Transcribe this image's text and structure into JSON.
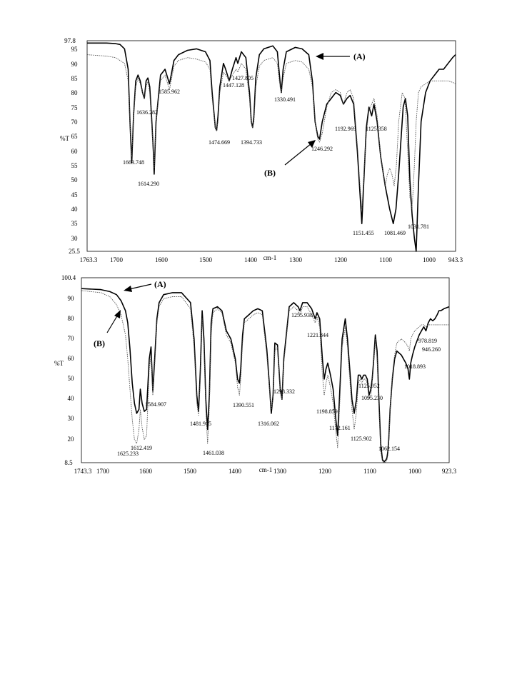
{
  "charts": [
    {
      "type": "line",
      "ylabel": "%T",
      "xlabel": "cm-1",
      "xlim": [
        1763.3,
        943.3
      ],
      "ylim": [
        25.5,
        97.8
      ],
      "x_ticks": [
        "1763.3",
        "1700",
        "1600",
        "1500",
        "1400",
        "1300",
        "1200",
        "1100",
        "1000",
        "943.3"
      ],
      "y_ticks": [
        "97.8",
        "95",
        "90",
        "85",
        "80",
        "75",
        "70",
        "65",
        "60",
        "55",
        "50",
        "45",
        "40",
        "35",
        "30",
        "25.5"
      ],
      "series": [
        {
          "name": "(A)",
          "style": "solid",
          "x": [
            1763,
            1720,
            1700,
            1690,
            1680,
            1672,
            1668,
            1664,
            1660,
            1655,
            1650,
            1645,
            1640,
            1636,
            1632,
            1628,
            1624,
            1620,
            1616,
            1614,
            1610,
            1600,
            1590,
            1586,
            1580,
            1575,
            1570,
            1560,
            1540,
            1520,
            1500,
            1490,
            1485,
            1478,
            1475,
            1472,
            1468,
            1460,
            1455,
            1447,
            1440,
            1432,
            1428,
            1420,
            1410,
            1402,
            1398,
            1395,
            1392,
            1388,
            1380,
            1370,
            1350,
            1340,
            1334,
            1331,
            1327,
            1320,
            1300,
            1285,
            1270,
            1262,
            1256,
            1250,
            1246,
            1240,
            1230,
            1210,
            1200,
            1193,
            1185,
            1178,
            1170,
            1162,
            1156,
            1152,
            1148,
            1142,
            1136,
            1130,
            1125,
            1118,
            1110,
            1100,
            1090,
            1082,
            1076,
            1070,
            1060,
            1055,
            1050,
            1045,
            1040,
            1035,
            1031,
            1026,
            1020,
            1010,
            1000,
            990,
            980,
            970,
            960,
            950,
            943
          ],
          "y": [
            97,
            97,
            96.8,
            96.5,
            95,
            88,
            70,
            56,
            72,
            84,
            86,
            84,
            80,
            78,
            84,
            85,
            82,
            72,
            60,
            52,
            70,
            86,
            88,
            86,
            83,
            87,
            91,
            93,
            94.5,
            95,
            94,
            91,
            80,
            68,
            67,
            72,
            82,
            90,
            88,
            84,
            88,
            92,
            90,
            94,
            92,
            80,
            70,
            68,
            72,
            85,
            93,
            95,
            96,
            94,
            84,
            80,
            88,
            94,
            95.5,
            95,
            93,
            84,
            70,
            65,
            64,
            70,
            76,
            80,
            79,
            76,
            78,
            79,
            76,
            60,
            45,
            35,
            48,
            68,
            75,
            72,
            76,
            70,
            58,
            48,
            40,
            35,
            40,
            52,
            75,
            78,
            72,
            50,
            38,
            30,
            24,
            48,
            70,
            80,
            84,
            86,
            88,
            88,
            90,
            92,
            93
          ]
        },
        {
          "name": "(B)",
          "style": "dotted",
          "x": [
            1763,
            1720,
            1700,
            1690,
            1680,
            1672,
            1668,
            1664,
            1660,
            1655,
            1650,
            1645,
            1640,
            1636,
            1632,
            1628,
            1624,
            1620,
            1616,
            1614,
            1610,
            1600,
            1590,
            1586,
            1580,
            1575,
            1570,
            1560,
            1540,
            1520,
            1500,
            1490,
            1485,
            1478,
            1475,
            1472,
            1468,
            1460,
            1455,
            1447,
            1440,
            1432,
            1428,
            1420,
            1410,
            1402,
            1398,
            1395,
            1392,
            1388,
            1380,
            1370,
            1350,
            1340,
            1334,
            1331,
            1327,
            1320,
            1300,
            1285,
            1270,
            1262,
            1256,
            1250,
            1246,
            1240,
            1230,
            1220,
            1210,
            1200,
            1193,
            1185,
            1178,
            1170,
            1162,
            1156,
            1152,
            1148,
            1142,
            1136,
            1130,
            1125,
            1118,
            1110,
            1100,
            1095,
            1090,
            1085,
            1080,
            1075,
            1070,
            1062,
            1056,
            1050,
            1045,
            1040,
            1035,
            1031,
            1026,
            1020,
            1010,
            1000,
            990,
            980,
            970,
            960,
            950,
            943
          ],
          "y": [
            93,
            92.5,
            92,
            91,
            90,
            84,
            70,
            58,
            72,
            82,
            85,
            83,
            80,
            78,
            82,
            84,
            80,
            70,
            60,
            54,
            70,
            84,
            86,
            84,
            81,
            85,
            89,
            91,
            92,
            91.5,
            90.5,
            88,
            78,
            68,
            67,
            70,
            80,
            87,
            86,
            84,
            86,
            88,
            87,
            90,
            88,
            78,
            70,
            68,
            70,
            82,
            89,
            91,
            92,
            90,
            82,
            80,
            85,
            90,
            91,
            90.5,
            88,
            82,
            70,
            64,
            63,
            66,
            75,
            80,
            81,
            80,
            76,
            80,
            81,
            78,
            62,
            48,
            40,
            50,
            66,
            74,
            76,
            78,
            72,
            58,
            48,
            52,
            54,
            52,
            48,
            55,
            70,
            80,
            78,
            60,
            44,
            40,
            55,
            70,
            80,
            82,
            83,
            84,
            84,
            84,
            84,
            84,
            83.5,
            83
          ]
        }
      ],
      "annotations": [
        "1663.748",
        "1636.282",
        "1614.290",
        "1585.962",
        "1474.669",
        "1447.128",
        "1427.805",
        "1394.733",
        "1330.491",
        "1246.292",
        "1192.969",
        "1125.358",
        "1151.455",
        "1081.469",
        "1031.781",
        "(A)",
        "(B)"
      ]
    },
    {
      "type": "line",
      "ylabel": "%T",
      "xlabel": "cm-1",
      "xlim": [
        1743.3,
        923.3
      ],
      "ylim": [
        8.5,
        100.4
      ],
      "x_ticks": [
        "1743.3",
        "1700",
        "1600",
        "1500",
        "1400",
        "1300",
        "1200",
        "1100",
        "1000",
        "923.3"
      ],
      "y_ticks": [
        "100.4",
        "90",
        "80",
        "70",
        "60",
        "50",
        "40",
        "30",
        "20",
        "8.5"
      ],
      "series": [
        {
          "name": "(A)",
          "style": "solid",
          "x": [
            1743,
            1700,
            1680,
            1665,
            1655,
            1645,
            1640,
            1635,
            1630,
            1625,
            1620,
            1615,
            1612,
            1608,
            1603,
            1598,
            1592,
            1588,
            1584,
            1580,
            1575,
            1570,
            1560,
            1540,
            1520,
            1500,
            1492,
            1486,
            1482,
            1478,
            1474,
            1470,
            1466,
            1462,
            1458,
            1454,
            1450,
            1440,
            1430,
            1420,
            1410,
            1400,
            1395,
            1391,
            1388,
            1384,
            1380,
            1370,
            1360,
            1350,
            1340,
            1330,
            1325,
            1320,
            1316,
            1312,
            1306,
            1300,
            1296,
            1292,
            1280,
            1270,
            1260,
            1256,
            1250,
            1240,
            1230,
            1222,
            1218,
            1212,
            1206,
            1202,
            1198,
            1194,
            1188,
            1182,
            1176,
            1172,
            1168,
            1162,
            1155,
            1150,
            1145,
            1140,
            1135,
            1130,
            1126,
            1122,
            1118,
            1114,
            1110,
            1106,
            1102,
            1098,
            1095,
            1092,
            1088,
            1084,
            1080,
            1076,
            1072,
            1068,
            1064,
            1062,
            1060,
            1058,
            1055,
            1050,
            1045,
            1040,
            1030,
            1020,
            1015,
            1012,
            1009,
            1005,
            1000,
            990,
            985,
            980,
            975,
            970,
            965,
            960,
            955,
            950,
            946,
            942,
            935,
            923
          ],
          "y": [
            95,
            94.5,
            93.5,
            92,
            89,
            84,
            78,
            65,
            48,
            38,
            33,
            35,
            45,
            38,
            34,
            35,
            60,
            66,
            44,
            60,
            80,
            88,
            92,
            93,
            93,
            88,
            70,
            42,
            34,
            55,
            84,
            70,
            40,
            25,
            42,
            78,
            85,
            86,
            84,
            74,
            70,
            60,
            50,
            48,
            55,
            72,
            80,
            82,
            84,
            85,
            84,
            65,
            50,
            33,
            42,
            68,
            67,
            45,
            40,
            60,
            86,
            88,
            86,
            84,
            88,
            88,
            85,
            80,
            83,
            80,
            60,
            50,
            55,
            58,
            52,
            45,
            30,
            22,
            40,
            70,
            80,
            70,
            55,
            40,
            33,
            40,
            52,
            52,
            50,
            52,
            52,
            50,
            42,
            45,
            50,
            58,
            72,
            64,
            40,
            18,
            10,
            9,
            10,
            11,
            14,
            20,
            35,
            50,
            60,
            64,
            62,
            58,
            55,
            50,
            58,
            62,
            66,
            72,
            74,
            76,
            74,
            78,
            80,
            79,
            80,
            82,
            84,
            84,
            85,
            86
          ]
        },
        {
          "name": "(B)",
          "style": "dotted",
          "x": [
            1743,
            1700,
            1680,
            1665,
            1655,
            1645,
            1640,
            1635,
            1630,
            1625,
            1620,
            1615,
            1612,
            1608,
            1603,
            1598,
            1592,
            1588,
            1584,
            1580,
            1575,
            1570,
            1560,
            1540,
            1520,
            1500,
            1492,
            1486,
            1482,
            1478,
            1474,
            1470,
            1466,
            1462,
            1458,
            1454,
            1450,
            1440,
            1430,
            1420,
            1410,
            1400,
            1395,
            1391,
            1388,
            1384,
            1380,
            1370,
            1360,
            1350,
            1340,
            1330,
            1325,
            1320,
            1316,
            1312,
            1306,
            1300,
            1296,
            1292,
            1280,
            1270,
            1260,
            1256,
            1250,
            1240,
            1230,
            1222,
            1218,
            1212,
            1206,
            1202,
            1198,
            1194,
            1188,
            1182,
            1176,
            1172,
            1168,
            1162,
            1155,
            1150,
            1145,
            1140,
            1135,
            1130,
            1126,
            1122,
            1118,
            1114,
            1110,
            1106,
            1102,
            1098,
            1095,
            1092,
            1088,
            1084,
            1080,
            1076,
            1072,
            1068,
            1064,
            1062,
            1060,
            1058,
            1055,
            1050,
            1045,
            1040,
            1030,
            1020,
            1015,
            1012,
            1009,
            1005,
            1000,
            990,
            985,
            980,
            975,
            970,
            965,
            960,
            955,
            950,
            946,
            942,
            935,
            923
          ],
          "y": [
            94,
            93,
            91,
            87,
            82,
            72,
            60,
            45,
            30,
            20,
            18,
            25,
            35,
            26,
            20,
            22,
            55,
            62,
            42,
            56,
            78,
            86,
            90,
            91,
            91,
            85,
            66,
            38,
            32,
            50,
            80,
            66,
            35,
            18,
            36,
            72,
            83,
            85,
            83,
            72,
            68,
            58,
            46,
            42,
            50,
            68,
            78,
            80,
            82,
            83,
            82,
            62,
            48,
            35,
            40,
            64,
            66,
            44,
            40,
            58,
            84,
            86,
            84,
            82,
            86,
            86,
            82,
            78,
            81,
            76,
            52,
            42,
            48,
            52,
            46,
            38,
            24,
            16,
            34,
            66,
            76,
            66,
            50,
            35,
            25,
            34,
            48,
            50,
            48,
            50,
            50,
            48,
            40,
            42,
            48,
            56,
            70,
            60,
            36,
            14,
            9,
            8.5,
            9,
            10,
            12,
            18,
            34,
            52,
            62,
            68,
            70,
            68,
            66,
            64,
            70,
            72,
            74,
            76,
            77,
            77,
            76,
            77,
            77,
            77,
            77,
            77,
            77,
            77,
            77,
            77
          ]
        }
      ],
      "annotations": [
        "1612.419",
        "1625.233",
        "1584.907",
        "1481.915",
        "1461.038",
        "1390.551",
        "1316.062",
        "1298.332",
        "1255.938",
        "1221.844",
        "1198.859",
        "1172.161",
        "1125.902",
        "1125.952",
        "1095.230",
        "1062.154",
        "1018.893",
        "978.819",
        "946.260",
        "(A)",
        "(B)"
      ]
    }
  ]
}
